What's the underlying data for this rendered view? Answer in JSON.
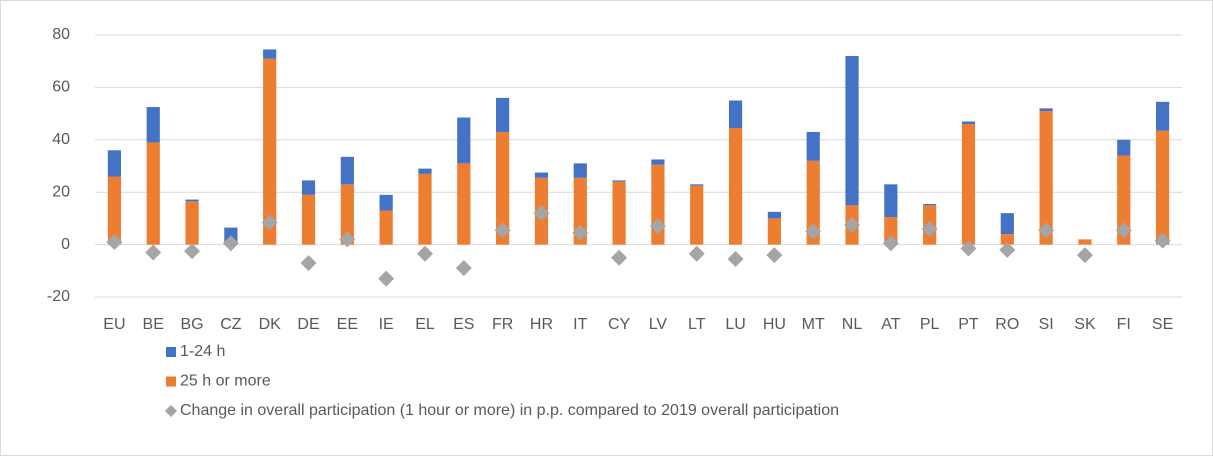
{
  "chart_data": {
    "type": "bar",
    "categories": [
      "EU",
      "BE",
      "BG",
      "CZ",
      "DK",
      "DE",
      "EE",
      "IE",
      "EL",
      "ES",
      "FR",
      "HR",
      "IT",
      "CY",
      "LV",
      "LT",
      "LU",
      "HU",
      "MT",
      "NL",
      "AT",
      "PL",
      "PT",
      "RO",
      "SI",
      "SK",
      "FI",
      "SE"
    ],
    "series": [
      {
        "name": "1-24 h",
        "color": "#4472c4",
        "values": [
          10,
          13.5,
          0.7,
          6,
          3.5,
          5.5,
          10.5,
          6,
          2,
          17.5,
          13,
          2,
          5.5,
          0.5,
          2,
          0.5,
          10.5,
          2.5,
          11,
          57,
          12.5,
          0.5,
          1,
          8,
          1,
          0,
          6,
          11
        ]
      },
      {
        "name": "25 h or more",
        "color": "#ed7d31",
        "values": [
          26,
          39,
          16.5,
          0.5,
          71,
          19,
          23,
          13,
          27,
          31,
          43,
          25.5,
          25.5,
          24,
          30.5,
          22.5,
          44.5,
          10,
          32,
          15,
          10.5,
          15,
          46,
          4,
          51,
          2,
          34,
          43.5
        ]
      },
      {
        "name": "Change in overall participation (1 hour or more) in p.p. compared to 2019 overall participation",
        "color": "#a5a5a5",
        "marker": "diamond",
        "values": [
          1,
          -3,
          -2.5,
          0.5,
          8.5,
          -7,
          2,
          -13,
          -3.5,
          -9,
          5.5,
          12,
          4.5,
          -5,
          7,
          -3.5,
          -5.5,
          -4,
          5,
          7.5,
          0.5,
          6,
          -1.5,
          -2,
          5.5,
          -4,
          5.5,
          1.5
        ]
      }
    ],
    "ylim": [
      -20,
      80
    ],
    "yticks": [
      -20,
      0,
      20,
      40,
      60,
      80
    ],
    "grid": true,
    "stacked": true,
    "legend": "bottom"
  }
}
